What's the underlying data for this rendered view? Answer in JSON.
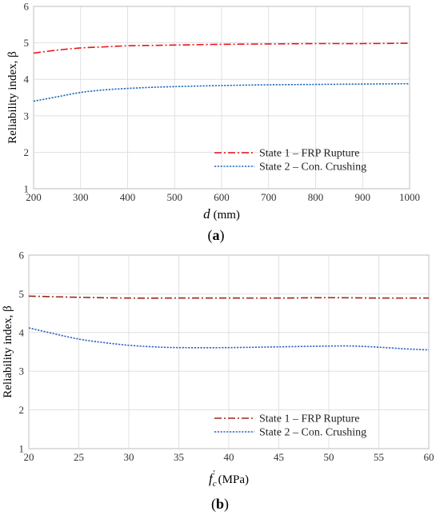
{
  "chart_data": [
    {
      "type": "line",
      "panel_label": "a",
      "xlabel_symbol": "d",
      "xlabel_unit": "(mm)",
      "ylabel": "Reliability index, β",
      "xlim": [
        200,
        1000
      ],
      "ylim": [
        1,
        6
      ],
      "xticks": [
        200,
        300,
        400,
        500,
        600,
        700,
        800,
        900,
        1000
      ],
      "yticks": [
        1,
        2,
        3,
        4,
        5,
        6
      ],
      "grid": true,
      "legend_position": "bottom-right",
      "series": [
        {
          "name": "State 1 – FRP Rupture",
          "color": "#e8131b",
          "style": "dash-dot",
          "x": [
            200,
            250,
            300,
            350,
            400,
            450,
            500,
            600,
            700,
            800,
            900,
            1000
          ],
          "y": [
            4.72,
            4.8,
            4.86,
            4.89,
            4.92,
            4.93,
            4.94,
            4.96,
            4.97,
            4.98,
            4.98,
            4.99
          ]
        },
        {
          "name": "State 2 – Con. Crushing",
          "color": "#1f6bb8",
          "style": "dotted",
          "x": [
            200,
            250,
            300,
            350,
            400,
            450,
            500,
            600,
            700,
            800,
            900,
            1000
          ],
          "y": [
            3.4,
            3.52,
            3.64,
            3.71,
            3.75,
            3.78,
            3.8,
            3.83,
            3.85,
            3.86,
            3.87,
            3.88
          ]
        }
      ]
    },
    {
      "type": "line",
      "panel_label": "b",
      "xlabel_symbol": "f",
      "xlabel_subscript": "c",
      "xlabel_superscript": "'",
      "xlabel_unit": "(MPa)",
      "ylabel": "Reliability index, β",
      "xlim": [
        20,
        60
      ],
      "ylim": [
        1,
        6
      ],
      "xticks": [
        20,
        25,
        30,
        35,
        40,
        45,
        50,
        55,
        60
      ],
      "yticks": [
        1,
        2,
        3,
        4,
        5,
        6
      ],
      "grid": true,
      "legend_position": "bottom-right",
      "series": [
        {
          "name": "State 1 – FRP Rupture",
          "color": "#a0271a",
          "style": "dash-dot",
          "x": [
            20,
            25,
            30,
            35,
            40,
            45,
            50,
            55,
            60
          ],
          "y": [
            4.94,
            4.91,
            4.89,
            4.89,
            4.89,
            4.89,
            4.9,
            4.89,
            4.89
          ]
        },
        {
          "name": "State 2 – Con. Crushing",
          "color": "#2f5fc4",
          "style": "dotted",
          "x": [
            20,
            22.5,
            25,
            27.5,
            30,
            32.5,
            35,
            40,
            45,
            50,
            52.5,
            55,
            57.5,
            60
          ],
          "y": [
            4.12,
            3.97,
            3.83,
            3.74,
            3.67,
            3.63,
            3.61,
            3.61,
            3.63,
            3.65,
            3.65,
            3.62,
            3.58,
            3.55
          ]
        }
      ]
    }
  ]
}
